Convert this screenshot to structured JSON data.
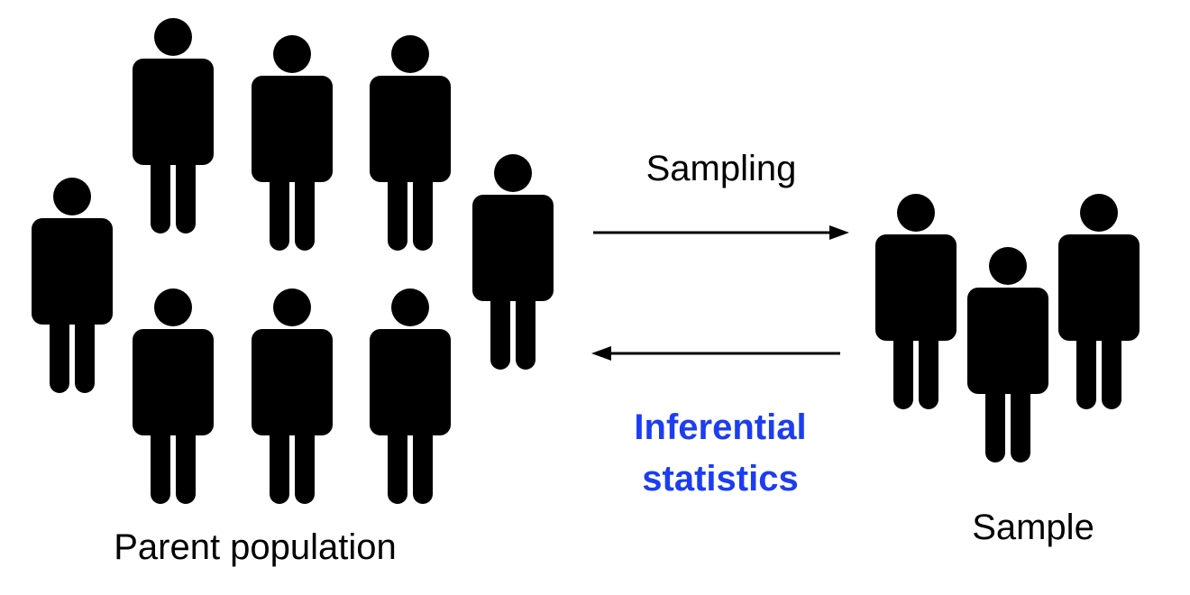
{
  "labels": {
    "parent_population": "Parent population",
    "sample": "Sample",
    "sampling": "Sampling",
    "inferential_line1": "Inferential",
    "inferential_line2": "statistics"
  },
  "colors": {
    "figure": "#000000",
    "text": "#000000",
    "accent": "#1c3df2",
    "background": "#ffffff"
  },
  "icons": {
    "person": "person-icon",
    "arrow_right": "arrow-right-icon",
    "arrow_left": "arrow-left-icon"
  }
}
